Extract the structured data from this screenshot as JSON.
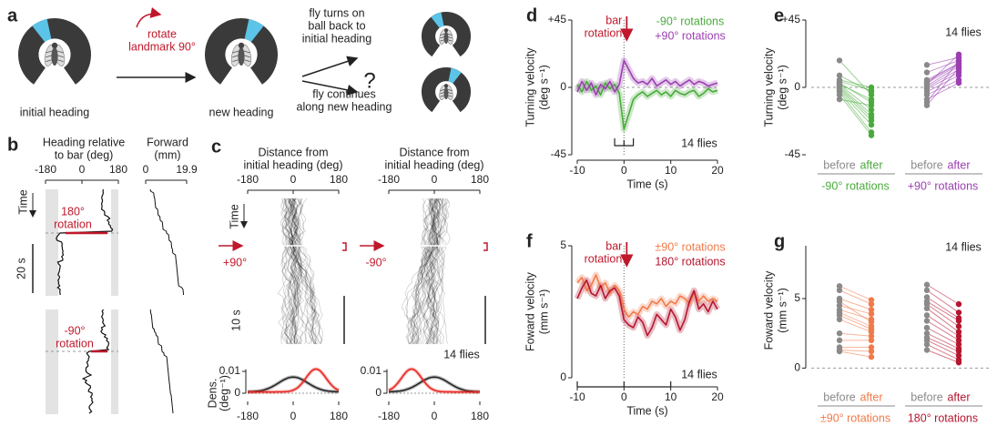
{
  "panel_a": {
    "label": "a",
    "start": "initial heading",
    "rotate": [
      "rotate",
      "landmark 90°"
    ],
    "new": "new heading",
    "turn_back": [
      "fly turns on",
      "ball back to",
      "initial heading"
    ],
    "question": "?",
    "continue": [
      "fly continues",
      "along new heading"
    ]
  },
  "panel_b": {
    "label": "b",
    "heading_axis": [
      "Heading relative",
      "to bar (deg)"
    ],
    "heading_ticks": [
      -180,
      0,
      180
    ],
    "forward_axis": [
      "Forward",
      "(mm)"
    ],
    "forward_ticks": [
      0,
      19.9
    ],
    "time": "Time",
    "top_event": [
      "180°",
      "rotation"
    ],
    "scale": "20 s",
    "bottom_event": [
      "-90°",
      "rotation"
    ]
  },
  "panel_c": {
    "label": "c",
    "plots": [
      {
        "axis_title": [
          "Distance from",
          "initial heading (deg)"
        ],
        "event": "+90°"
      },
      {
        "axis_title": [
          "Distance from",
          "initial heading (deg)"
        ],
        "event": "-90°",
        "note": "14 flies"
      }
    ],
    "ticks": [
      -180,
      0,
      180
    ],
    "time": "Time",
    "scale": "10 s",
    "density_ticks": [
      0,
      0.01
    ],
    "density_axis": [
      "Dens.",
      "(deg⁻¹)"
    ]
  },
  "chart_data": [
    {
      "label": "d",
      "type": "line",
      "y_label": [
        "Turning velocity",
        "(deg s⁻¹)"
      ],
      "x_label": "Time (s)",
      "x": [
        -10,
        -9,
        -8,
        -7,
        -6,
        -5,
        -4,
        -3,
        -2,
        -1,
        0,
        1,
        2,
        3,
        4,
        5,
        6,
        7,
        8,
        9,
        10,
        11,
        12,
        13,
        14,
        15,
        16,
        17,
        18,
        19,
        20
      ],
      "xlim": [
        -10,
        20
      ],
      "xticks": [
        -10,
        0,
        10,
        20
      ],
      "ylim": [
        -45,
        45
      ],
      "yticks": [
        -45,
        0,
        {
          "value": 45,
          "label": "+45"
        }
      ],
      "zero_line": true,
      "event_x": 0,
      "event_label": [
        "bar",
        "rotation"
      ],
      "note": "14 flies",
      "series": [
        {
          "name": "-90° rotations",
          "color": "#4aab3c",
          "values": [
            2,
            -3,
            4,
            -2,
            1,
            -5,
            3,
            -1,
            2,
            -4,
            -28,
            -18,
            -8,
            -5,
            -3,
            -6,
            -4,
            -2,
            -5,
            -3,
            -6,
            -2,
            -4,
            -5,
            -3,
            -2,
            -6,
            -4,
            -1,
            -3,
            -2
          ]
        },
        {
          "name": "+90° rotations",
          "color": "#9b3fb0",
          "values": [
            -3,
            4,
            -2,
            3,
            -5,
            2,
            -1,
            4,
            -3,
            2,
            18,
            12,
            6,
            3,
            4,
            2,
            6,
            1,
            3,
            5,
            2,
            4,
            1,
            3,
            5,
            2,
            4,
            3,
            1,
            2,
            3
          ]
        }
      ]
    },
    {
      "label": "e",
      "type": "paired_dot",
      "y_label": [
        "Turning velocity",
        "(deg s⁻¹)"
      ],
      "ylim": [
        -45,
        45
      ],
      "yticks": [
        -45,
        0,
        {
          "value": 45,
          "label": "+45"
        }
      ],
      "zero_line": true,
      "note": "14 flies",
      "conditions": [
        "before",
        "after"
      ],
      "before_color": "#8a8a8a",
      "groups": [
        {
          "name": "-90° rotations",
          "color": "#4aab3c",
          "before": [
            18,
            8,
            5,
            3,
            2,
            1,
            0,
            -1,
            -2,
            -3,
            -5,
            -8,
            2,
            4
          ],
          "after": [
            -5,
            -3,
            0,
            -10,
            -15,
            -18,
            -20,
            -22,
            -25,
            -30,
            -32,
            -12,
            -8,
            -2
          ]
        },
        {
          "name": "+90° rotations",
          "color": "#9b3fb0",
          "before": [
            15,
            10,
            5,
            3,
            1,
            0,
            -1,
            -3,
            -5,
            -8,
            -10,
            -12,
            2,
            4
          ],
          "after": [
            20,
            18,
            16,
            15,
            14,
            12,
            10,
            8,
            5,
            3,
            18,
            13,
            22,
            16
          ]
        }
      ]
    },
    {
      "label": "f",
      "type": "line",
      "y_label": [
        "Foward velocity",
        "(mm s⁻¹)"
      ],
      "x_label": "Time (s)",
      "x": [
        -10,
        -9,
        -8,
        -7,
        -6,
        -5,
        -4,
        -3,
        -2,
        -1,
        0,
        1,
        2,
        3,
        4,
        5,
        6,
        7,
        8,
        9,
        10,
        11,
        12,
        13,
        14,
        15,
        16,
        17,
        18,
        19,
        20
      ],
      "xlim": [
        -10,
        20
      ],
      "xticks": [
        -10,
        0,
        10,
        20
      ],
      "ylim": [
        0,
        5
      ],
      "yticks": [
        0,
        5
      ],
      "zero_line": false,
      "event_x": 0,
      "event_label": [
        "bar",
        "rotation"
      ],
      "note": "14 flies",
      "series": [
        {
          "name": "±90° rotations",
          "color": "#f07a4a",
          "values": [
            3.6,
            3.8,
            3.3,
            3.5,
            3.9,
            3.4,
            3.6,
            3.2,
            3.5,
            3.3,
            2.6,
            2.3,
            2.5,
            2.4,
            2.7,
            2.6,
            2.9,
            2.8,
            3.0,
            2.7,
            2.9,
            2.8,
            3.1,
            3.0,
            2.8,
            3.2,
            2.9,
            3.1,
            2.9,
            3.0,
            2.9
          ]
        },
        {
          "name": "180° rotations",
          "color": "#b5162f",
          "values": [
            3.0,
            3.4,
            3.7,
            3.2,
            3.1,
            3.5,
            3.0,
            3.3,
            3.4,
            3.1,
            2.2,
            2.0,
            1.9,
            2.3,
            2.1,
            1.6,
            1.9,
            2.4,
            2.2,
            2.0,
            2.6,
            2.3,
            1.8,
            2.2,
            2.9,
            3.3,
            2.6,
            2.8,
            2.5,
            2.9,
            2.6
          ]
        }
      ]
    },
    {
      "label": "g",
      "type": "paired_dot",
      "y_label": [
        "Foward velocity",
        "(mm s⁻¹)"
      ],
      "ylim": [
        -0.5,
        8.8
      ],
      "yticks": [
        0,
        5
      ],
      "zero_line": true,
      "note": "14 flies",
      "conditions": [
        "before",
        "after"
      ],
      "before_color": "#8a8a8a",
      "groups": [
        {
          "name": "±90° rotations",
          "color": "#f07a4a",
          "before": [
            5.9,
            5.6,
            5.0,
            4.5,
            4.2,
            4.0,
            3.8,
            3.5,
            2.5,
            2.0,
            1.5,
            1.3,
            1.2,
            4.8
          ],
          "after": [
            4.9,
            4.6,
            4.2,
            3.9,
            3.5,
            3.0,
            2.8,
            2.6,
            2.3,
            2.0,
            1.5,
            1.2,
            0.8,
            3.3
          ]
        },
        {
          "name": "180° rotations",
          "color": "#b5162f",
          "before": [
            6.0,
            5.6,
            5.1,
            4.6,
            4.3,
            3.8,
            3.4,
            2.9,
            2.5,
            2.2,
            2.0,
            1.7,
            1.3,
            4.8
          ],
          "after": [
            4.6,
            4.0,
            3.6,
            3.0,
            2.6,
            2.3,
            2.0,
            1.7,
            1.4,
            1.2,
            0.9,
            0.6,
            0.4,
            3.4
          ]
        }
      ]
    }
  ]
}
